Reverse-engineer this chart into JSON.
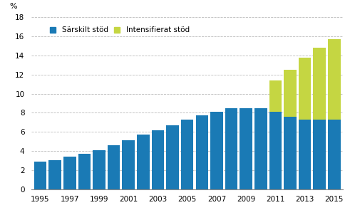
{
  "years": [
    1995,
    1996,
    1997,
    1998,
    1999,
    2000,
    2001,
    2002,
    2003,
    2004,
    2005,
    2006,
    2007,
    2008,
    2009,
    2010,
    2011,
    2012,
    2013,
    2014,
    2015
  ],
  "sarskilt_stod": [
    2.9,
    3.0,
    3.4,
    3.7,
    4.1,
    4.6,
    5.1,
    5.7,
    6.2,
    6.7,
    7.3,
    7.7,
    8.1,
    8.5,
    8.5,
    8.5,
    8.1,
    7.6,
    7.3,
    7.3,
    7.3
  ],
  "intensifierat_stod": [
    0,
    0,
    0,
    0,
    0,
    0,
    0,
    0,
    0,
    0,
    0,
    0,
    0,
    0,
    0,
    0,
    3.3,
    4.9,
    6.5,
    7.5,
    8.4
  ],
  "bar_color_sarskilt": "#1a7ab5",
  "bar_color_intensifierat": "#c5d642",
  "legend_sarskilt": "Särskilt stöd",
  "legend_intensifierat": "Intensifierat stöd",
  "ylabel": "%",
  "ylim": [
    0,
    18
  ],
  "yticks": [
    0,
    2,
    4,
    6,
    8,
    10,
    12,
    14,
    16,
    18
  ],
  "background_color": "#ffffff",
  "grid_color": "#bbbbbb",
  "bar_width": 0.85
}
